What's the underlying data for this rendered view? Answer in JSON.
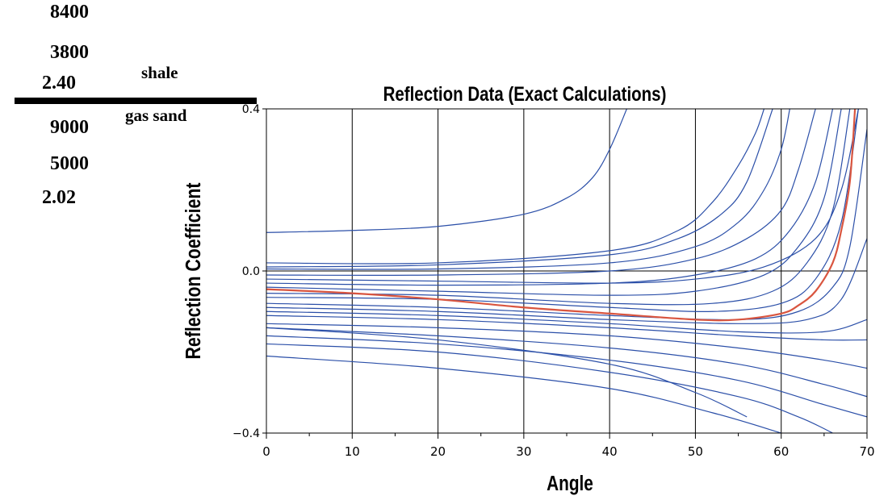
{
  "layers": {
    "upper": {
      "name": "shale",
      "values": [
        "8400",
        "3800",
        "2.40"
      ]
    },
    "lower": {
      "name": "gas sand",
      "values": [
        "9000",
        "5000",
        "2.02"
      ]
    }
  },
  "chart_data": {
    "type": "line",
    "title": "Reflection Data (Exact Calculations)",
    "xlabel": "Angle",
    "ylabel": "Reflection Coefficient",
    "xlim": [
      0,
      70
    ],
    "ylim": [
      -0.4,
      0.4
    ],
    "xticks": [
      "0",
      "10",
      "20",
      "30",
      "40",
      "50",
      "60",
      "70"
    ],
    "yticks": [
      "−0.4",
      "0.0",
      "0.4"
    ],
    "grid": true,
    "series_color": "#2b4fa8",
    "highlight_color": "#d9553f",
    "highlight": {
      "x": [
        0,
        10,
        20,
        30,
        40,
        50,
        55,
        60,
        62,
        64,
        66,
        67,
        68,
        68.6
      ],
      "y": [
        -0.045,
        -0.055,
        -0.07,
        -0.09,
        -0.105,
        -0.12,
        -0.12,
        -0.105,
        -0.085,
        -0.05,
        0.02,
        0.1,
        0.22,
        0.4
      ]
    },
    "series": [
      {
        "x": [
          0,
          10,
          20,
          30,
          35,
          38,
          40,
          42
        ],
        "y": [
          0.095,
          0.1,
          0.11,
          0.14,
          0.18,
          0.23,
          0.3,
          0.4
        ]
      },
      {
        "x": [
          0,
          20,
          40,
          48,
          52,
          55,
          57,
          58
        ],
        "y": [
          0.02,
          0.02,
          0.05,
          0.1,
          0.17,
          0.26,
          0.34,
          0.4
        ]
      },
      {
        "x": [
          0,
          20,
          40,
          50,
          55,
          58,
          60,
          61
        ],
        "y": [
          0.005,
          0.005,
          0.02,
          0.06,
          0.12,
          0.2,
          0.3,
          0.4
        ]
      },
      {
        "x": [
          0,
          20,
          40,
          50,
          56,
          60,
          62,
          64
        ],
        "y": [
          -0.01,
          -0.01,
          0,
          0.03,
          0.08,
          0.15,
          0.25,
          0.4
        ]
      },
      {
        "x": [
          0,
          20,
          40,
          50,
          57,
          61,
          64,
          66
        ],
        "y": [
          -0.03,
          -0.035,
          -0.03,
          -0.01,
          0.03,
          0.1,
          0.22,
          0.4
        ]
      },
      {
        "x": [
          0,
          20,
          40,
          50,
          58,
          62,
          65,
          67
        ],
        "y": [
          -0.04,
          -0.05,
          -0.06,
          -0.05,
          -0.01,
          0.06,
          0.18,
          0.4
        ]
      },
      {
        "x": [
          0,
          20,
          40,
          52,
          59,
          63,
          66,
          68
        ],
        "y": [
          -0.055,
          -0.06,
          -0.08,
          -0.08,
          -0.05,
          0.02,
          0.15,
          0.4
        ]
      },
      {
        "x": [
          0,
          20,
          40,
          52,
          60,
          64,
          67,
          69
        ],
        "y": [
          -0.065,
          -0.07,
          -0.09,
          -0.1,
          -0.08,
          -0.02,
          0.12,
          0.4
        ]
      },
      {
        "x": [
          0,
          20,
          40,
          55,
          62,
          66,
          68,
          70
        ],
        "y": [
          -0.08,
          -0.09,
          -0.11,
          -0.12,
          -0.1,
          -0.04,
          0.06,
          0.35
        ]
      },
      {
        "x": [
          0,
          20,
          40,
          55,
          63,
          67,
          70
        ],
        "y": [
          -0.09,
          -0.1,
          -0.12,
          -0.13,
          -0.12,
          -0.07,
          0.08
        ]
      },
      {
        "x": [
          0,
          20,
          40,
          55,
          65,
          70
        ],
        "y": [
          -0.1,
          -0.11,
          -0.13,
          -0.15,
          -0.15,
          -0.12
        ]
      },
      {
        "x": [
          0,
          20,
          40,
          55,
          65,
          70
        ],
        "y": [
          -0.11,
          -0.12,
          -0.14,
          -0.16,
          -0.17,
          -0.17
        ]
      },
      {
        "x": [
          0,
          20,
          40,
          55,
          65,
          70
        ],
        "y": [
          -0.13,
          -0.14,
          -0.16,
          -0.19,
          -0.22,
          -0.24
        ]
      },
      {
        "x": [
          0,
          20,
          40,
          55,
          65,
          70
        ],
        "y": [
          -0.14,
          -0.16,
          -0.19,
          -0.23,
          -0.28,
          -0.31
        ]
      },
      {
        "x": [
          0,
          20,
          40,
          55,
          65,
          70
        ],
        "y": [
          -0.16,
          -0.18,
          -0.22,
          -0.27,
          -0.33,
          -0.36
        ]
      },
      {
        "x": [
          0,
          20,
          40,
          55,
          62,
          66
        ],
        "y": [
          -0.18,
          -0.2,
          -0.25,
          -0.31,
          -0.36,
          -0.4
        ]
      },
      {
        "x": [
          0,
          20,
          40,
          52,
          60
        ],
        "y": [
          -0.21,
          -0.24,
          -0.29,
          -0.35,
          -0.4
        ]
      },
      {
        "x": [
          0,
          20,
          40,
          50,
          56
        ],
        "y": [
          -0.14,
          -0.17,
          -0.23,
          -0.3,
          -0.36
        ]
      },
      {
        "x": [
          0,
          20,
          40,
          50,
          58,
          64,
          67,
          69
        ],
        "y": [
          -0.02,
          -0.025,
          -0.03,
          -0.02,
          0.01,
          0.08,
          0.2,
          0.4
        ]
      },
      {
        "x": [
          0,
          20,
          40,
          48,
          53,
          56,
          59
        ],
        "y": [
          0.01,
          0.015,
          0.04,
          0.08,
          0.14,
          0.22,
          0.4
        ]
      }
    ]
  }
}
